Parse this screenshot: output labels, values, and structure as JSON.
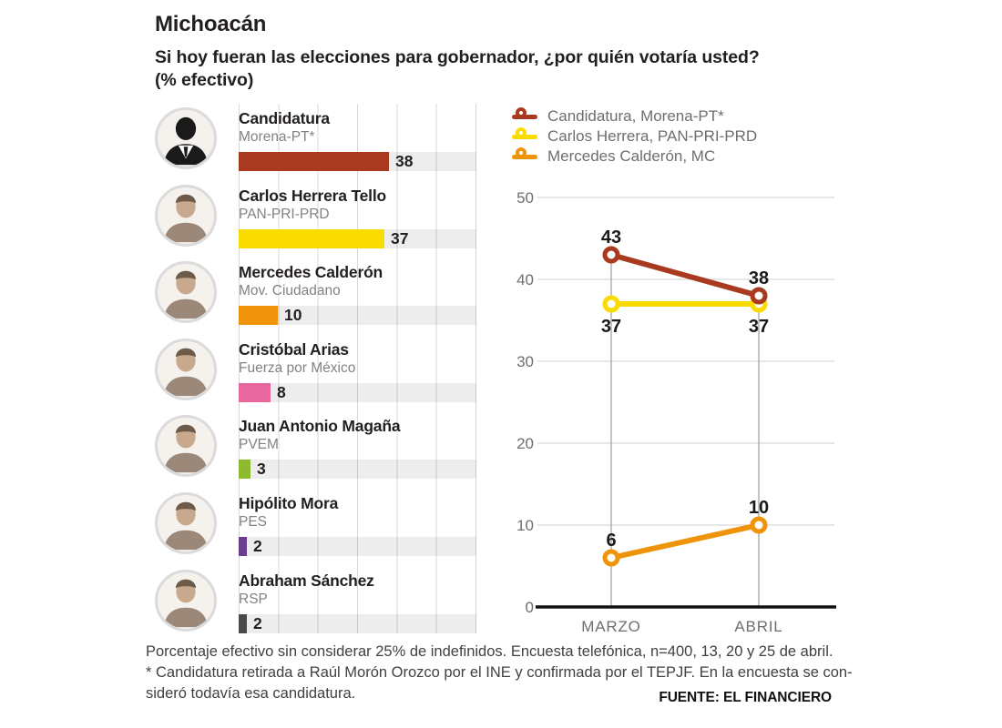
{
  "header": {
    "title": "Michoacán",
    "subtitle_line1": "Si hoy fueran las elecciones para gobernador, ¿por quién votaría usted?",
    "subtitle_line2": "(% efectivo)"
  },
  "candidates": [
    {
      "name": "Candidatura",
      "party": "Morena-PT*",
      "value": 38,
      "color": "#A93A20",
      "avatar": "suit-silhouette"
    },
    {
      "name": "Carlos Herrera Tello",
      "party": "PAN-PRI-PRD",
      "value": 37,
      "color": "#F9DB00",
      "avatar": "photo"
    },
    {
      "name": "Mercedes Calderón",
      "party": "Mov. Ciudadano",
      "value": 10,
      "color": "#EF930B",
      "avatar": "photo"
    },
    {
      "name": "Cristóbal Arias",
      "party": "Fuerza por México",
      "value": 8,
      "color": "#E8689E",
      "avatar": "photo"
    },
    {
      "name": "Juan Antonio Magaña",
      "party": "PVEM",
      "value": 3,
      "color": "#8EBA30",
      "avatar": "photo"
    },
    {
      "name": "Hipólito Mora",
      "party": "PES",
      "value": 2,
      "color": "#6C3D8F",
      "avatar": "photo"
    },
    {
      "name": "Abraham Sánchez",
      "party": "RSP",
      "value": 2,
      "color": "#4A4A4A",
      "avatar": "photo"
    }
  ],
  "left_bar_axis": {
    "max": 60,
    "gridline_step": 10
  },
  "chart_data": {
    "type": "line",
    "x": [
      "MARZO",
      "ABRIL"
    ],
    "series": [
      {
        "name": "Candidatura, Morena-PT*",
        "color": "#A93A20",
        "values": [
          43,
          38
        ],
        "label_position": "above"
      },
      {
        "name": "Carlos Herrera, PAN-PRI-PRD",
        "color": "#F9DB00",
        "values": [
          37,
          37
        ],
        "label_position": "below"
      },
      {
        "name": "Mercedes Calderón, MC",
        "color": "#EF930B",
        "values": [
          6,
          10
        ],
        "label_position": "above"
      }
    ],
    "ylim": [
      0,
      50
    ],
    "yticks": [
      0,
      10,
      20,
      30,
      40,
      50
    ],
    "grid": "horizontal",
    "legend_position": "top",
    "point_labels": true
  },
  "footer": {
    "line1": "Porcentaje efectivo sin considerar 25% de indefinidos. Encuesta telefónica, n=400, 13, 20 y 25 de abril.",
    "line2": "* Candidatura retirada a Raúl Morón Orozco por el INE y confirmada por el TEPJF. En la encuesta se con-",
    "line3": "sideró todavía esa candidatura.",
    "source": "FUENTE: EL FINANCIERO"
  },
  "colors": {
    "text_dark": "#231F20",
    "text_gray": "#808285",
    "axis_gray": "#6D6E71",
    "bar_track": "#EDEDED",
    "gridline": "#D8D8D8",
    "baseline": "#111111"
  }
}
